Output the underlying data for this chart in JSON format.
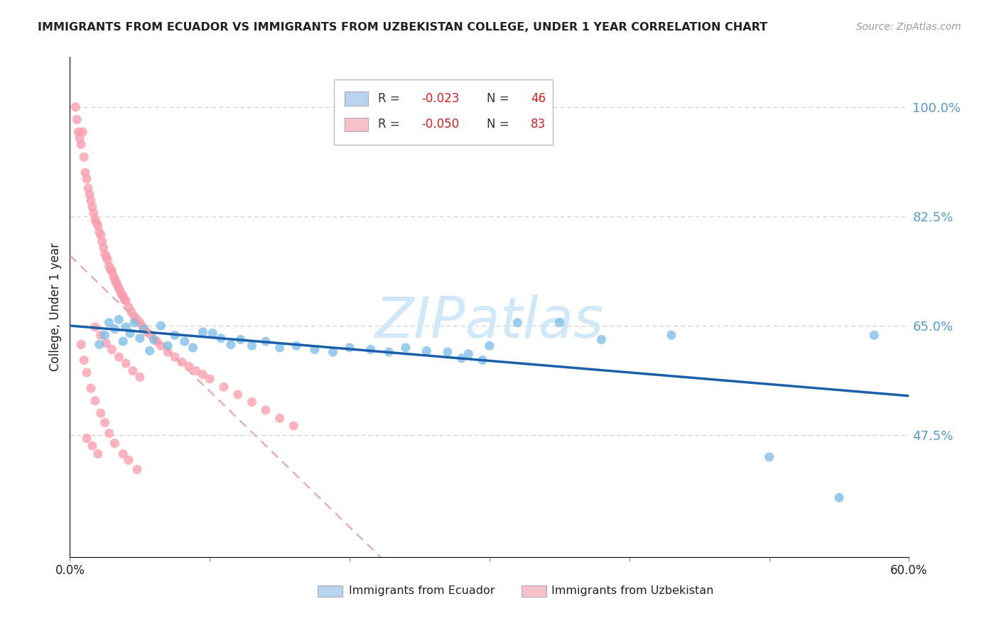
{
  "title": "IMMIGRANTS FROM ECUADOR VS IMMIGRANTS FROM UZBEKISTAN COLLEGE, UNDER 1 YEAR CORRELATION CHART",
  "source": "Source: ZipAtlas.com",
  "ylabel": "College, Under 1 year",
  "y_ticks_pct": [
    47.5,
    65.0,
    82.5,
    100.0
  ],
  "x_min": 0.0,
  "x_max": 0.6,
  "y_min": 0.28,
  "y_max": 1.08,
  "ecuador_color": "#7bbce8",
  "uzbekistan_color": "#f99bab",
  "ecuador_trend_color": "#1a5fa8",
  "uzbekistan_trend_color": "#e8a0a8",
  "ecuador_R": -0.023,
  "ecuador_N": 46,
  "uzbekistan_R": -0.05,
  "uzbekistan_N": 83,
  "ecuador_scatter_x": [
    0.021,
    0.025,
    0.028,
    0.032,
    0.035,
    0.038,
    0.04,
    0.043,
    0.046,
    0.05,
    0.053,
    0.057,
    0.06,
    0.065,
    0.07,
    0.075,
    0.082,
    0.088,
    0.095,
    0.102,
    0.108,
    0.115,
    0.122,
    0.13,
    0.14,
    0.15,
    0.162,
    0.175,
    0.188,
    0.2,
    0.215,
    0.228,
    0.24,
    0.255,
    0.27,
    0.285,
    0.3,
    0.32,
    0.35,
    0.38,
    0.28,
    0.295,
    0.43,
    0.5,
    0.55,
    0.575
  ],
  "ecuador_scatter_y": [
    0.62,
    0.635,
    0.655,
    0.645,
    0.66,
    0.625,
    0.648,
    0.638,
    0.655,
    0.63,
    0.645,
    0.61,
    0.628,
    0.65,
    0.618,
    0.635,
    0.625,
    0.615,
    0.64,
    0.638,
    0.63,
    0.62,
    0.628,
    0.618,
    0.625,
    0.615,
    0.618,
    0.612,
    0.608,
    0.615,
    0.612,
    0.608,
    0.615,
    0.61,
    0.608,
    0.605,
    0.618,
    0.655,
    0.655,
    0.628,
    0.598,
    0.595,
    0.635,
    0.44,
    0.375,
    0.635
  ],
  "uzbekistan_scatter_x": [
    0.004,
    0.005,
    0.006,
    0.007,
    0.008,
    0.009,
    0.01,
    0.011,
    0.012,
    0.013,
    0.014,
    0.015,
    0.016,
    0.017,
    0.018,
    0.019,
    0.02,
    0.021,
    0.022,
    0.023,
    0.024,
    0.025,
    0.026,
    0.027,
    0.028,
    0.029,
    0.03,
    0.031,
    0.032,
    0.033,
    0.034,
    0.035,
    0.036,
    0.037,
    0.038,
    0.039,
    0.04,
    0.042,
    0.044,
    0.046,
    0.048,
    0.05,
    0.052,
    0.055,
    0.058,
    0.062,
    0.065,
    0.07,
    0.075,
    0.08,
    0.085,
    0.09,
    0.095,
    0.1,
    0.11,
    0.12,
    0.13,
    0.14,
    0.15,
    0.16,
    0.008,
    0.01,
    0.012,
    0.015,
    0.018,
    0.022,
    0.025,
    0.028,
    0.032,
    0.038,
    0.042,
    0.048,
    0.018,
    0.022,
    0.026,
    0.03,
    0.035,
    0.04,
    0.045,
    0.05,
    0.012,
    0.016,
    0.02
  ],
  "uzbekistan_scatter_y": [
    1.0,
    0.98,
    0.96,
    0.95,
    0.94,
    0.96,
    0.92,
    0.895,
    0.885,
    0.87,
    0.86,
    0.85,
    0.84,
    0.83,
    0.82,
    0.815,
    0.81,
    0.8,
    0.795,
    0.785,
    0.775,
    0.765,
    0.76,
    0.755,
    0.745,
    0.74,
    0.738,
    0.73,
    0.725,
    0.72,
    0.715,
    0.71,
    0.705,
    0.7,
    0.698,
    0.692,
    0.69,
    0.68,
    0.672,
    0.665,
    0.66,
    0.655,
    0.648,
    0.64,
    0.635,
    0.625,
    0.618,
    0.608,
    0.6,
    0.592,
    0.585,
    0.578,
    0.572,
    0.565,
    0.552,
    0.54,
    0.528,
    0.515,
    0.502,
    0.49,
    0.62,
    0.595,
    0.575,
    0.55,
    0.53,
    0.51,
    0.495,
    0.478,
    0.462,
    0.445,
    0.435,
    0.42,
    0.648,
    0.635,
    0.622,
    0.612,
    0.6,
    0.59,
    0.578,
    0.568,
    0.47,
    0.458,
    0.445
  ],
  "watermark_text": "ZIPatlas",
  "legend_box_color_ecuador": "#b8d4f0",
  "legend_box_color_uzbekistan": "#f8c0c8",
  "grid_color": "#cccccc",
  "right_axis_color": "#5599cc",
  "title_color": "#222222",
  "legend_R_color": "#cc2222",
  "legend_N_color": "#cc2222",
  "legend_text_color": "#333333",
  "watermark_color": "#d0e8f8",
  "source_color": "#999999"
}
